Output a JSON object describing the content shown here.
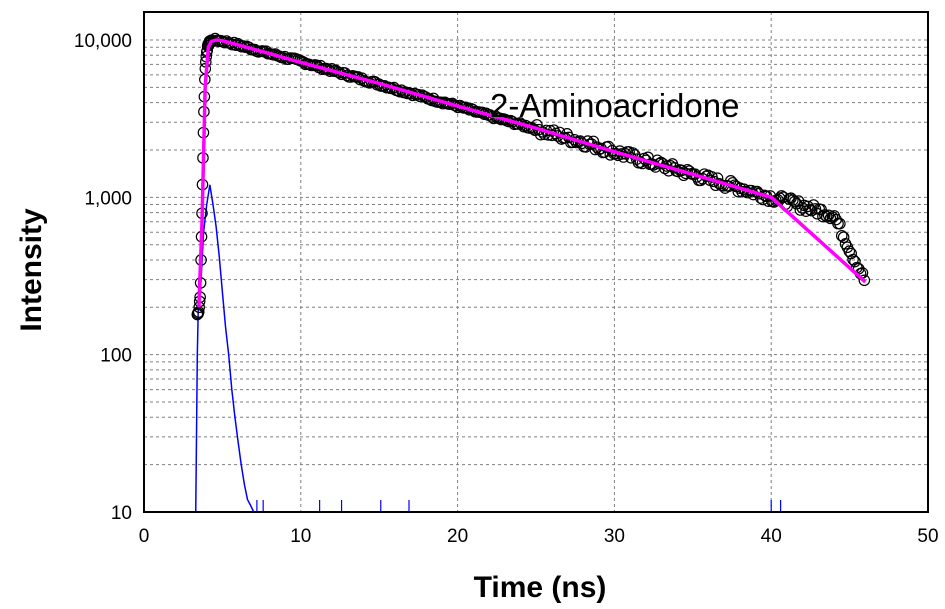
{
  "chart_data": {
    "type": "scatter",
    "title": "",
    "xlabel": "Time (ns)",
    "ylabel": "Intensity",
    "xlim": [
      0,
      50
    ],
    "ylim": [
      10,
      20000
    ],
    "y_scale": "log",
    "grid": true,
    "x_ticks": [
      0,
      10,
      20,
      30,
      40,
      50
    ],
    "x_tick_labels": [
      "0",
      "10",
      "20",
      "30",
      "40",
      "50"
    ],
    "y_ticks": [
      10,
      100,
      1000,
      10000
    ],
    "y_tick_labels": [
      "10",
      "100",
      "1,000",
      "10,000"
    ],
    "annotation": "2-Aminoacridone",
    "colors": {
      "fit": "#ff00ff",
      "irf": "#0000ff",
      "data": "#000000",
      "grid": "#808080"
    },
    "series": [
      {
        "role": "data",
        "marker": "open-circle",
        "x": [
          3.4,
          3.5,
          3.6,
          3.7,
          3.8,
          3.9,
          4.0,
          4.1,
          4.2,
          4.3,
          4.5,
          4.7,
          5.0,
          5.5,
          6,
          7,
          8,
          10,
          12,
          14,
          16,
          18,
          20,
          22,
          24,
          26,
          28,
          30,
          32,
          34,
          36,
          38,
          40,
          42,
          44,
          46
        ],
        "y": [
          180,
          190,
          250,
          800,
          3000,
          6500,
          8500,
          9300,
          9700,
          9900,
          10000,
          9950,
          9850,
          9600,
          9300,
          8750,
          8200,
          7300,
          6400,
          5600,
          4900,
          4300,
          3800,
          3300,
          2900,
          2550,
          2250,
          1950,
          1700,
          1500,
          1300,
          1150,
          1000,
          880,
          770,
          290
        ]
      },
      {
        "role": "fit",
        "x": [
          3.5,
          3.7,
          3.9,
          4.1,
          4.3,
          4.6,
          5,
          6,
          8,
          10,
          15,
          20,
          25,
          30,
          35,
          40,
          46
        ],
        "y": [
          200,
          700,
          5000,
          9000,
          9800,
          10000,
          9900,
          9300,
          8200,
          7200,
          5300,
          3800,
          2750,
          1950,
          1400,
          1000,
          290
        ]
      },
      {
        "role": "irf",
        "x": [
          3.3,
          3.4,
          3.5,
          3.6,
          3.8,
          4.0,
          4.2,
          4.4,
          4.6,
          4.8,
          5.0,
          5.2,
          5.4,
          5.6,
          5.8,
          6.0,
          6.2,
          6.4,
          6.6,
          6.8,
          7.0
        ],
        "y": [
          10,
          100,
          300,
          250,
          600,
          900,
          1200,
          900,
          650,
          420,
          250,
          150,
          100,
          60,
          40,
          28,
          20,
          15,
          12,
          11,
          10
        ]
      }
    ]
  }
}
